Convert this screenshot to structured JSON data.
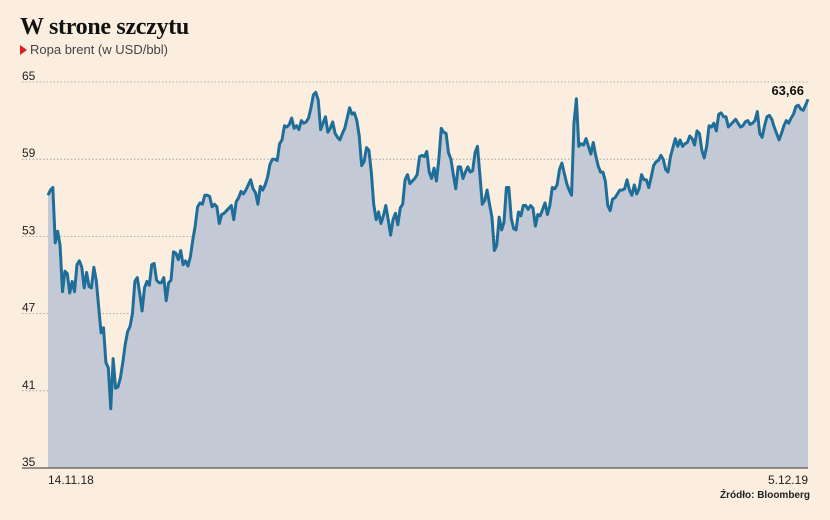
{
  "header": {
    "title": "W strone szczytu",
    "subtitle": "Ropa brent (w USD/bbl)"
  },
  "source": "Źródło: Bloomberg",
  "colors": {
    "line": "#1f6e99",
    "area": "#c4c9d6",
    "background": "#fbeedf",
    "marker": "#d81e1e"
  },
  "chart_data": {
    "type": "area",
    "ylim": [
      35,
      65
    ],
    "yticks": [
      "35",
      "41",
      "47",
      "53",
      "59",
      "65"
    ],
    "xlabels": [
      "14.11.18",
      "5.12.19"
    ],
    "last_value_label": "63,66",
    "grid": true,
    "values": [
      56.2,
      56.6,
      56.8,
      52.5,
      53.4,
      52.3,
      48.7,
      50.3,
      50.1,
      48.6,
      49.5,
      48.7,
      50.8,
      51.1,
      50.6,
      49.0,
      50.2,
      49.1,
      49.0,
      50.6,
      49.6,
      47.5,
      45.5,
      45.9,
      43.2,
      42.8,
      39.6,
      43.5,
      41.2,
      41.3,
      42.0,
      43.2,
      44.6,
      45.6,
      46.0,
      47.0,
      49.5,
      49.8,
      48.6,
      47.2,
      49.0,
      49.5,
      49.2,
      50.8,
      50.9,
      49.6,
      49.4,
      49.4,
      49.8,
      48.0,
      49.4,
      49.6,
      51.8,
      51.7,
      51.2,
      51.9,
      50.8,
      51.1,
      50.7,
      51.4,
      52.7,
      53.8,
      55.3,
      55.6,
      55.5,
      56.2,
      56.2,
      56.1,
      55.3,
      55.5,
      55.3,
      54.0,
      54.7,
      54.8,
      55.0,
      55.2,
      55.4,
      54.3,
      55.7,
      56.0,
      56.5,
      56.3,
      56.6,
      57.0,
      57.4,
      56.7,
      56.4,
      55.5,
      56.9,
      56.6,
      57.0,
      57.6,
      58.6,
      59.0,
      59.0,
      58.9,
      60.2,
      60.5,
      61.6,
      61.5,
      61.7,
      62.2,
      61.4,
      61.6,
      61.3,
      62.0,
      61.8,
      61.9,
      62.2,
      63.0,
      64.0,
      64.2,
      63.6,
      61.3,
      61.8,
      62.3,
      61.1,
      61.4,
      61.9,
      61.0,
      60.7,
      60.5,
      61.0,
      61.4,
      62.2,
      63.0,
      62.5,
      62.6,
      62.0,
      60.8,
      58.5,
      58.8,
      59.9,
      59.7,
      58.0,
      55.5,
      54.3,
      54.9,
      54.0,
      54.6,
      55.4,
      54.3,
      53.1,
      54.3,
      54.8,
      53.9,
      55.2,
      55.5,
      57.4,
      57.8,
      57.1,
      57.3,
      57.5,
      57.8,
      59.2,
      59.3,
      59.2,
      59.6,
      58.0,
      57.5,
      58.3,
      57.3,
      59.0,
      61.4,
      61.1,
      61.0,
      59.5,
      59.0,
      57.8,
      56.7,
      58.4,
      58.4,
      57.5,
      58.0,
      58.4,
      58.0,
      58.1,
      59.5,
      60.0,
      57.8,
      55.5,
      55.8,
      56.6,
      55.5,
      54.5,
      51.9,
      52.3,
      54.5,
      53.5,
      54.1,
      56.8,
      56.8,
      54.4,
      53.6,
      53.5,
      54.9,
      54.6,
      55.4,
      55.4,
      55.1,
      55.4,
      55.2,
      53.8,
      54.7,
      54.6,
      55.1,
      55.6,
      54.7,
      55.4,
      56.8,
      56.7,
      57.0,
      58.2,
      58.7,
      57.9,
      57.1,
      56.6,
      56.2,
      61.8,
      63.7,
      60.0,
      60.2,
      60.1,
      60.6,
      60.0,
      59.4,
      60.3,
      59.3,
      58.5,
      58.0,
      58.0,
      57.3,
      55.4,
      55.0,
      55.9,
      56.0,
      56.3,
      56.6,
      56.6,
      56.7,
      57.4,
      56.6,
      56.2,
      57.0,
      56.3,
      56.7,
      57.8,
      57.4,
      57.4,
      56.8,
      57.6,
      58.5,
      58.8,
      58.9,
      59.3,
      59.0,
      58.2,
      58.0,
      59.2,
      59.9,
      60.6,
      60.0,
      60.5,
      60.0,
      60.2,
      60.3,
      60.8,
      60.6,
      60.1,
      61.2,
      61.0,
      59.7,
      59.1,
      60.0,
      61.6,
      61.5,
      61.8,
      61.2,
      62.5,
      62.6,
      62.3,
      62.3,
      61.5,
      61.7,
      61.9,
      62.1,
      61.8,
      61.5,
      61.6,
      61.9,
      62.0,
      61.7,
      61.8,
      62.0,
      62.7,
      61.0,
      60.7,
      61.6,
      62.3,
      62.4,
      62.1,
      61.5,
      61.0,
      60.5,
      61.0,
      61.6,
      62.0,
      61.8,
      62.2,
      62.5,
      63.1,
      63.2,
      62.9,
      62.8,
      63.2,
      63.66
    ]
  }
}
